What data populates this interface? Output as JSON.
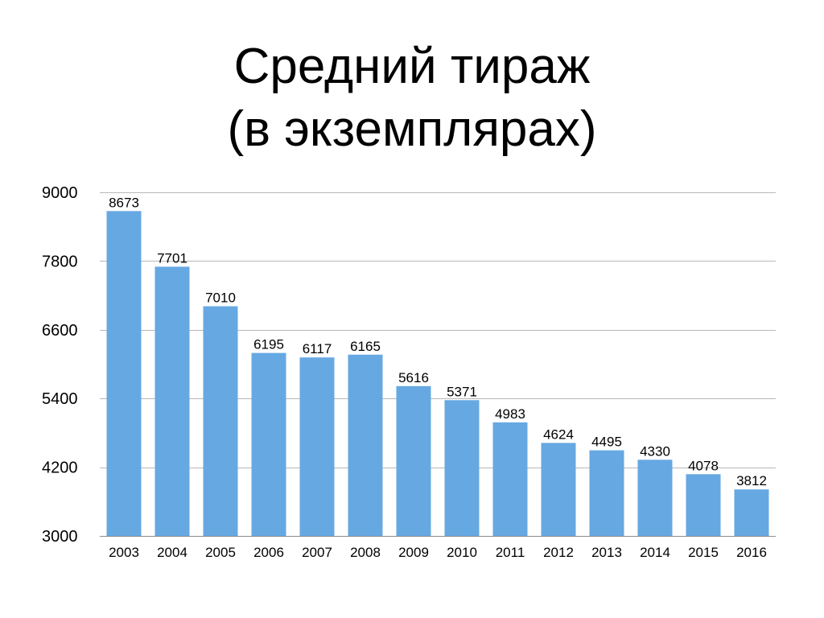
{
  "slide": {
    "title_line1": "Средний тираж",
    "title_line2": "(в экземплярах)"
  },
  "chart_data": {
    "type": "bar",
    "title": "",
    "xlabel": "",
    "ylabel": "",
    "categories": [
      "2003",
      "2004",
      "2005",
      "2006",
      "2007",
      "2008",
      "2009",
      "2010",
      "2011",
      "2012",
      "2013",
      "2014",
      "2015",
      "2016"
    ],
    "values": [
      8673,
      7701,
      7010,
      6195,
      6117,
      6165,
      5616,
      5371,
      4983,
      4624,
      4495,
      4330,
      4078,
      3812
    ],
    "data_labels": [
      "8673",
      "7701",
      "7010",
      "6195",
      "6117",
      "6165",
      "5616",
      "5371",
      "4983",
      "4624",
      "4495",
      "4330",
      "4078",
      "3812"
    ],
    "ylim": [
      3000,
      9000
    ],
    "yticks": [
      3000,
      4200,
      5400,
      6600,
      7800,
      9000
    ],
    "ytick_labels": [
      "3000",
      "4200",
      "5400",
      "6600",
      "7800",
      "9000"
    ],
    "grid": true,
    "legend": "none",
    "bar_color": "#66a8e2",
    "grid_color": "#b8b8b8"
  }
}
